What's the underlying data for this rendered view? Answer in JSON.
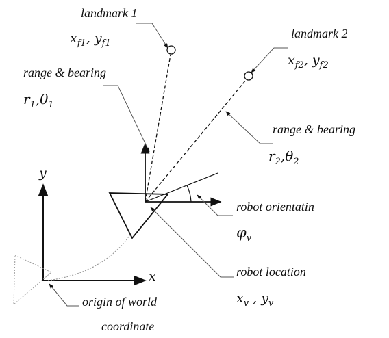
{
  "colors": {
    "ink": "#111111",
    "leader": "#555555",
    "dotted": "#888888"
  },
  "labels": {
    "landmark1": "landmark 1",
    "landmark1_coords": "x",
    "landmark1_coords_sub": "f1",
    "landmark1_coords_sep": ", y",
    "landmark1_coords_sub2": "f1",
    "landmark2": "landmark 2",
    "landmark2_coords": "x",
    "landmark2_coords_sub": "f2",
    "landmark2_coords_sep": ", y",
    "landmark2_coords_sub2": "f2",
    "range_bearing_1": "range & bearing",
    "r1": "r",
    "r1_sub": "1",
    "theta1": "θ",
    "theta1_sub": "1",
    "range_bearing_2": "range & bearing",
    "r2": "r",
    "r2_sub": "2",
    "theta2": "θ",
    "theta2_sub": "2",
    "robot_orientation": "robot orientatin",
    "phi": "φ",
    "phi_sub": "v",
    "robot_location": "robot location",
    "loc_x": "x",
    "loc_x_sub": "v",
    "loc_sep": " , y",
    "loc_y_sub": "v",
    "axis_x": "x",
    "axis_y": "y",
    "origin_line1": "origin of  world",
    "origin_line2": "coordinate"
  }
}
